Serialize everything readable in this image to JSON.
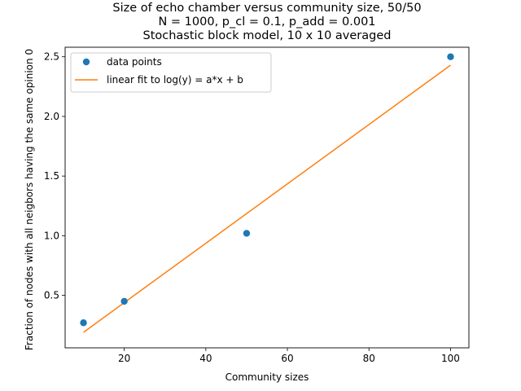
{
  "chart_data": {
    "type": "scatter",
    "title_lines": [
      "Size of echo chamber versus community size, 50/50",
      "N = 1000, p_cl = 0.1, p_add = 0.001",
      "Stochastic block model, 10 x 10 averaged"
    ],
    "xlabel": "Community sizes",
    "ylabel": "Fraction of nodes with all neigbors having the same opinion 0",
    "xlim": [
      5.5,
      104.5
    ],
    "ylim": [
      0.06,
      2.58
    ],
    "xticks": [
      20,
      40,
      60,
      80,
      100
    ],
    "yticks": [
      0.5,
      1.0,
      1.5,
      2.0,
      2.5
    ],
    "ytick_labels": [
      "0.5",
      "1.0",
      "1.5",
      "2.0",
      "2.5"
    ],
    "grid": false,
    "legend_position": "top-left",
    "series": [
      {
        "name": "data points",
        "kind": "scatter",
        "color": "#1f77b4",
        "x": [
          10,
          20,
          50,
          100
        ],
        "y": [
          0.27,
          0.45,
          1.02,
          2.5
        ]
      },
      {
        "name": "linear fit to log(y) = a*x + b",
        "kind": "line",
        "color": "#ff7f0e",
        "x": [
          10,
          100
        ],
        "y": [
          0.19,
          2.43
        ]
      }
    ]
  }
}
